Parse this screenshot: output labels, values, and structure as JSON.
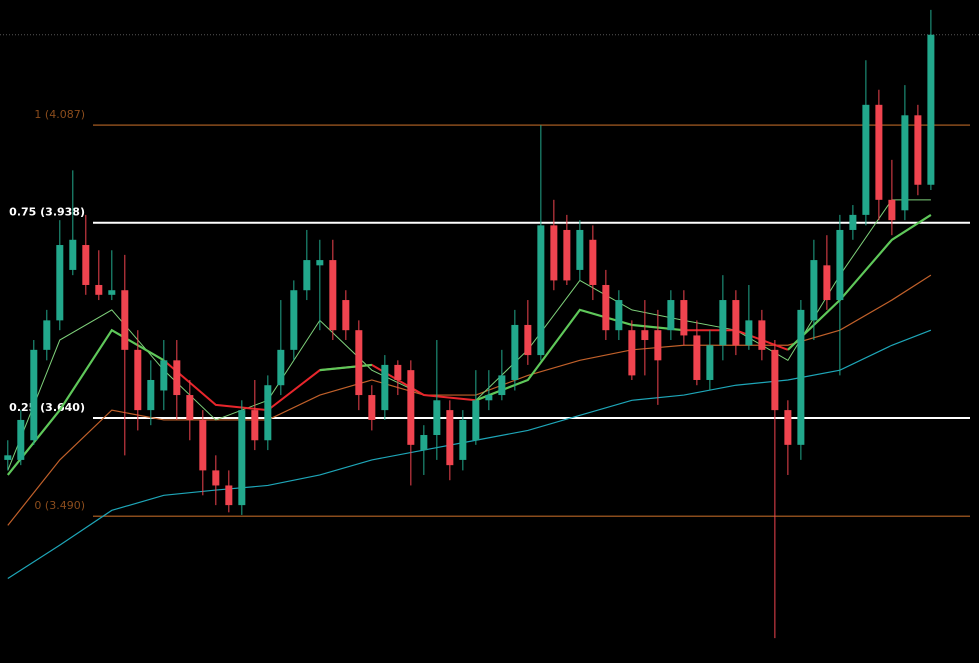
{
  "chart_data": {
    "type": "candlestick",
    "up_color": "#22a88c",
    "down_color": "#f0444f",
    "xlim": [
      -0.6,
      74.7
    ],
    "ylim": [
      3.266,
      4.278
    ],
    "x": [
      0,
      1,
      2,
      3,
      4,
      5,
      6,
      7,
      8,
      9,
      10,
      11,
      12,
      13,
      14,
      15,
      16,
      17,
      18,
      19,
      20,
      21,
      22,
      23,
      24,
      25,
      26,
      27,
      28,
      29,
      30,
      31,
      32,
      33,
      34,
      35,
      36,
      37,
      38,
      39,
      40,
      41,
      42,
      43,
      44,
      45,
      46,
      47,
      48,
      49,
      50,
      51,
      52,
      53,
      54,
      55,
      56,
      57,
      58,
      59,
      60,
      61,
      62,
      63,
      64,
      65,
      66,
      67,
      68,
      69,
      70,
      71
    ],
    "open": [
      3.576,
      3.576,
      3.606,
      3.744,
      3.789,
      3.866,
      3.904,
      3.843,
      3.828,
      3.835,
      3.744,
      3.652,
      3.682,
      3.728,
      3.675,
      3.637,
      3.56,
      3.537,
      3.507,
      3.652,
      3.606,
      3.69,
      3.744,
      3.835,
      3.873,
      3.881,
      3.82,
      3.774,
      3.675,
      3.652,
      3.721,
      3.713,
      3.591,
      3.614,
      3.652,
      3.576,
      3.606,
      3.667,
      3.675,
      3.698,
      3.782,
      3.736,
      3.934,
      3.927,
      3.866,
      3.912,
      3.843,
      3.774,
      3.774,
      3.774,
      3.774,
      3.774,
      3.82,
      3.766,
      3.698,
      3.751,
      3.82,
      3.751,
      3.789,
      3.744,
      3.652,
      3.599,
      3.789,
      3.873,
      3.82,
      3.927,
      3.95,
      4.118,
      3.973,
      3.957,
      4.102,
      3.996
    ],
    "high": [
      3.606,
      3.652,
      3.759,
      3.805,
      3.942,
      4.018,
      3.95,
      3.896,
      3.896,
      3.889,
      3.774,
      3.728,
      3.759,
      3.759,
      3.698,
      3.652,
      3.583,
      3.56,
      3.667,
      3.698,
      3.705,
      3.82,
      3.85,
      3.927,
      3.912,
      3.912,
      3.835,
      3.789,
      3.69,
      3.736,
      3.728,
      3.728,
      3.629,
      3.759,
      3.667,
      3.652,
      3.713,
      3.713,
      3.744,
      3.805,
      3.82,
      4.087,
      3.973,
      3.95,
      3.942,
      3.934,
      3.866,
      3.835,
      3.789,
      3.82,
      3.805,
      3.835,
      3.835,
      3.789,
      3.774,
      3.858,
      3.835,
      3.843,
      3.805,
      3.759,
      3.667,
      3.82,
      3.912,
      3.919,
      3.95,
      3.965,
      4.186,
      4.141,
      4.034,
      4.148,
      4.118,
      4.263
    ],
    "low": [
      3.56,
      3.568,
      3.599,
      3.728,
      3.774,
      3.858,
      3.828,
      3.82,
      3.82,
      3.583,
      3.621,
      3.629,
      3.652,
      3.637,
      3.606,
      3.522,
      3.507,
      3.496,
      3.492,
      3.591,
      3.591,
      3.675,
      3.728,
      3.82,
      3.774,
      3.759,
      3.759,
      3.652,
      3.621,
      3.637,
      3.675,
      3.537,
      3.553,
      3.576,
      3.545,
      3.56,
      3.599,
      3.652,
      3.667,
      3.682,
      3.721,
      3.728,
      3.835,
      3.843,
      3.85,
      3.82,
      3.759,
      3.759,
      3.698,
      3.705,
      3.66,
      3.759,
      3.751,
      3.69,
      3.682,
      3.728,
      3.736,
      3.744,
      3.728,
      3.304,
      3.553,
      3.576,
      3.759,
      3.805,
      3.705,
      3.912,
      3.934,
      3.942,
      3.919,
      3.942,
      3.98,
      3.988
    ],
    "close": [
      3.583,
      3.637,
      3.744,
      3.789,
      3.904,
      3.912,
      3.843,
      3.828,
      3.835,
      3.744,
      3.652,
      3.698,
      3.728,
      3.675,
      3.637,
      3.56,
      3.537,
      3.507,
      3.652,
      3.606,
      3.69,
      3.744,
      3.835,
      3.881,
      3.881,
      3.774,
      3.774,
      3.675,
      3.637,
      3.721,
      3.698,
      3.599,
      3.614,
      3.667,
      3.568,
      3.637,
      3.667,
      3.675,
      3.705,
      3.782,
      3.736,
      3.934,
      3.85,
      3.85,
      3.927,
      3.843,
      3.774,
      3.82,
      3.705,
      3.759,
      3.728,
      3.82,
      3.766,
      3.698,
      3.751,
      3.82,
      3.751,
      3.789,
      3.744,
      3.652,
      3.599,
      3.805,
      3.881,
      3.82,
      3.927,
      3.95,
      4.118,
      3.973,
      3.942,
      4.102,
      3.996,
      4.225
    ],
    "ma_x": [
      0,
      4,
      8,
      12,
      16,
      20,
      24,
      28,
      32,
      36,
      40,
      44,
      48,
      52,
      56,
      60,
      64,
      68,
      71
    ],
    "moving_averages": [
      {
        "color": "#1ea6b8",
        "width": 1.2,
        "values": [
          3.395,
          3.446,
          3.499,
          3.522,
          3.53,
          3.537,
          3.553,
          3.576,
          3.591,
          3.606,
          3.621,
          3.644,
          3.667,
          3.675,
          3.69,
          3.698,
          3.713,
          3.751,
          3.774
        ]
      },
      {
        "color": "#c0602a",
        "width": 1.2,
        "values": [
          3.476,
          3.576,
          3.652,
          3.637,
          3.637,
          3.637,
          3.675,
          3.698,
          3.675,
          3.675,
          3.705,
          3.728,
          3.744,
          3.751,
          3.751,
          3.751,
          3.774,
          3.82,
          3.858
        ]
      },
      {
        "color": "#7ed07a",
        "width": 1,
        "values": [
          3.56,
          3.759,
          3.805,
          3.713,
          3.637,
          3.667,
          3.789,
          3.713,
          3.675,
          3.667,
          3.744,
          3.85,
          3.805,
          3.789,
          3.774,
          3.728,
          3.858,
          3.973,
          3.973
        ]
      },
      {
        "color": "#e8262c",
        "width": 2,
        "values": [
          null,
          null,
          null,
          3.728,
          3.66,
          3.652,
          3.713,
          3.721,
          3.675,
          3.667,
          null,
          null,
          null,
          3.774,
          3.774,
          3.744,
          null,
          null,
          null
        ]
      },
      {
        "color": "#5fc85a",
        "width": 2.2,
        "values": [
          3.553,
          3.652,
          3.774,
          3.728,
          null,
          null,
          3.713,
          3.721,
          null,
          3.667,
          3.698,
          3.805,
          3.782,
          3.774,
          null,
          3.744,
          3.82,
          3.912,
          3.95
        ]
      }
    ],
    "fib_levels": [
      {
        "label": "1 (4.087)",
        "value": 4.087,
        "color": "#8a4c1c",
        "label_color": "#8a4c1c"
      },
      {
        "label": "0.75 (3.938)",
        "value": 3.938,
        "color": "#ffffff",
        "label_color": "#ffffff"
      },
      {
        "label": "0.25 (3.640)",
        "value": 3.64,
        "color": "#ffffff",
        "label_color": "#ffffff"
      },
      {
        "label": "0 (3.490)",
        "value": 3.49,
        "color": "#8a4c1c",
        "label_color": "#8a4c1c"
      }
    ]
  }
}
